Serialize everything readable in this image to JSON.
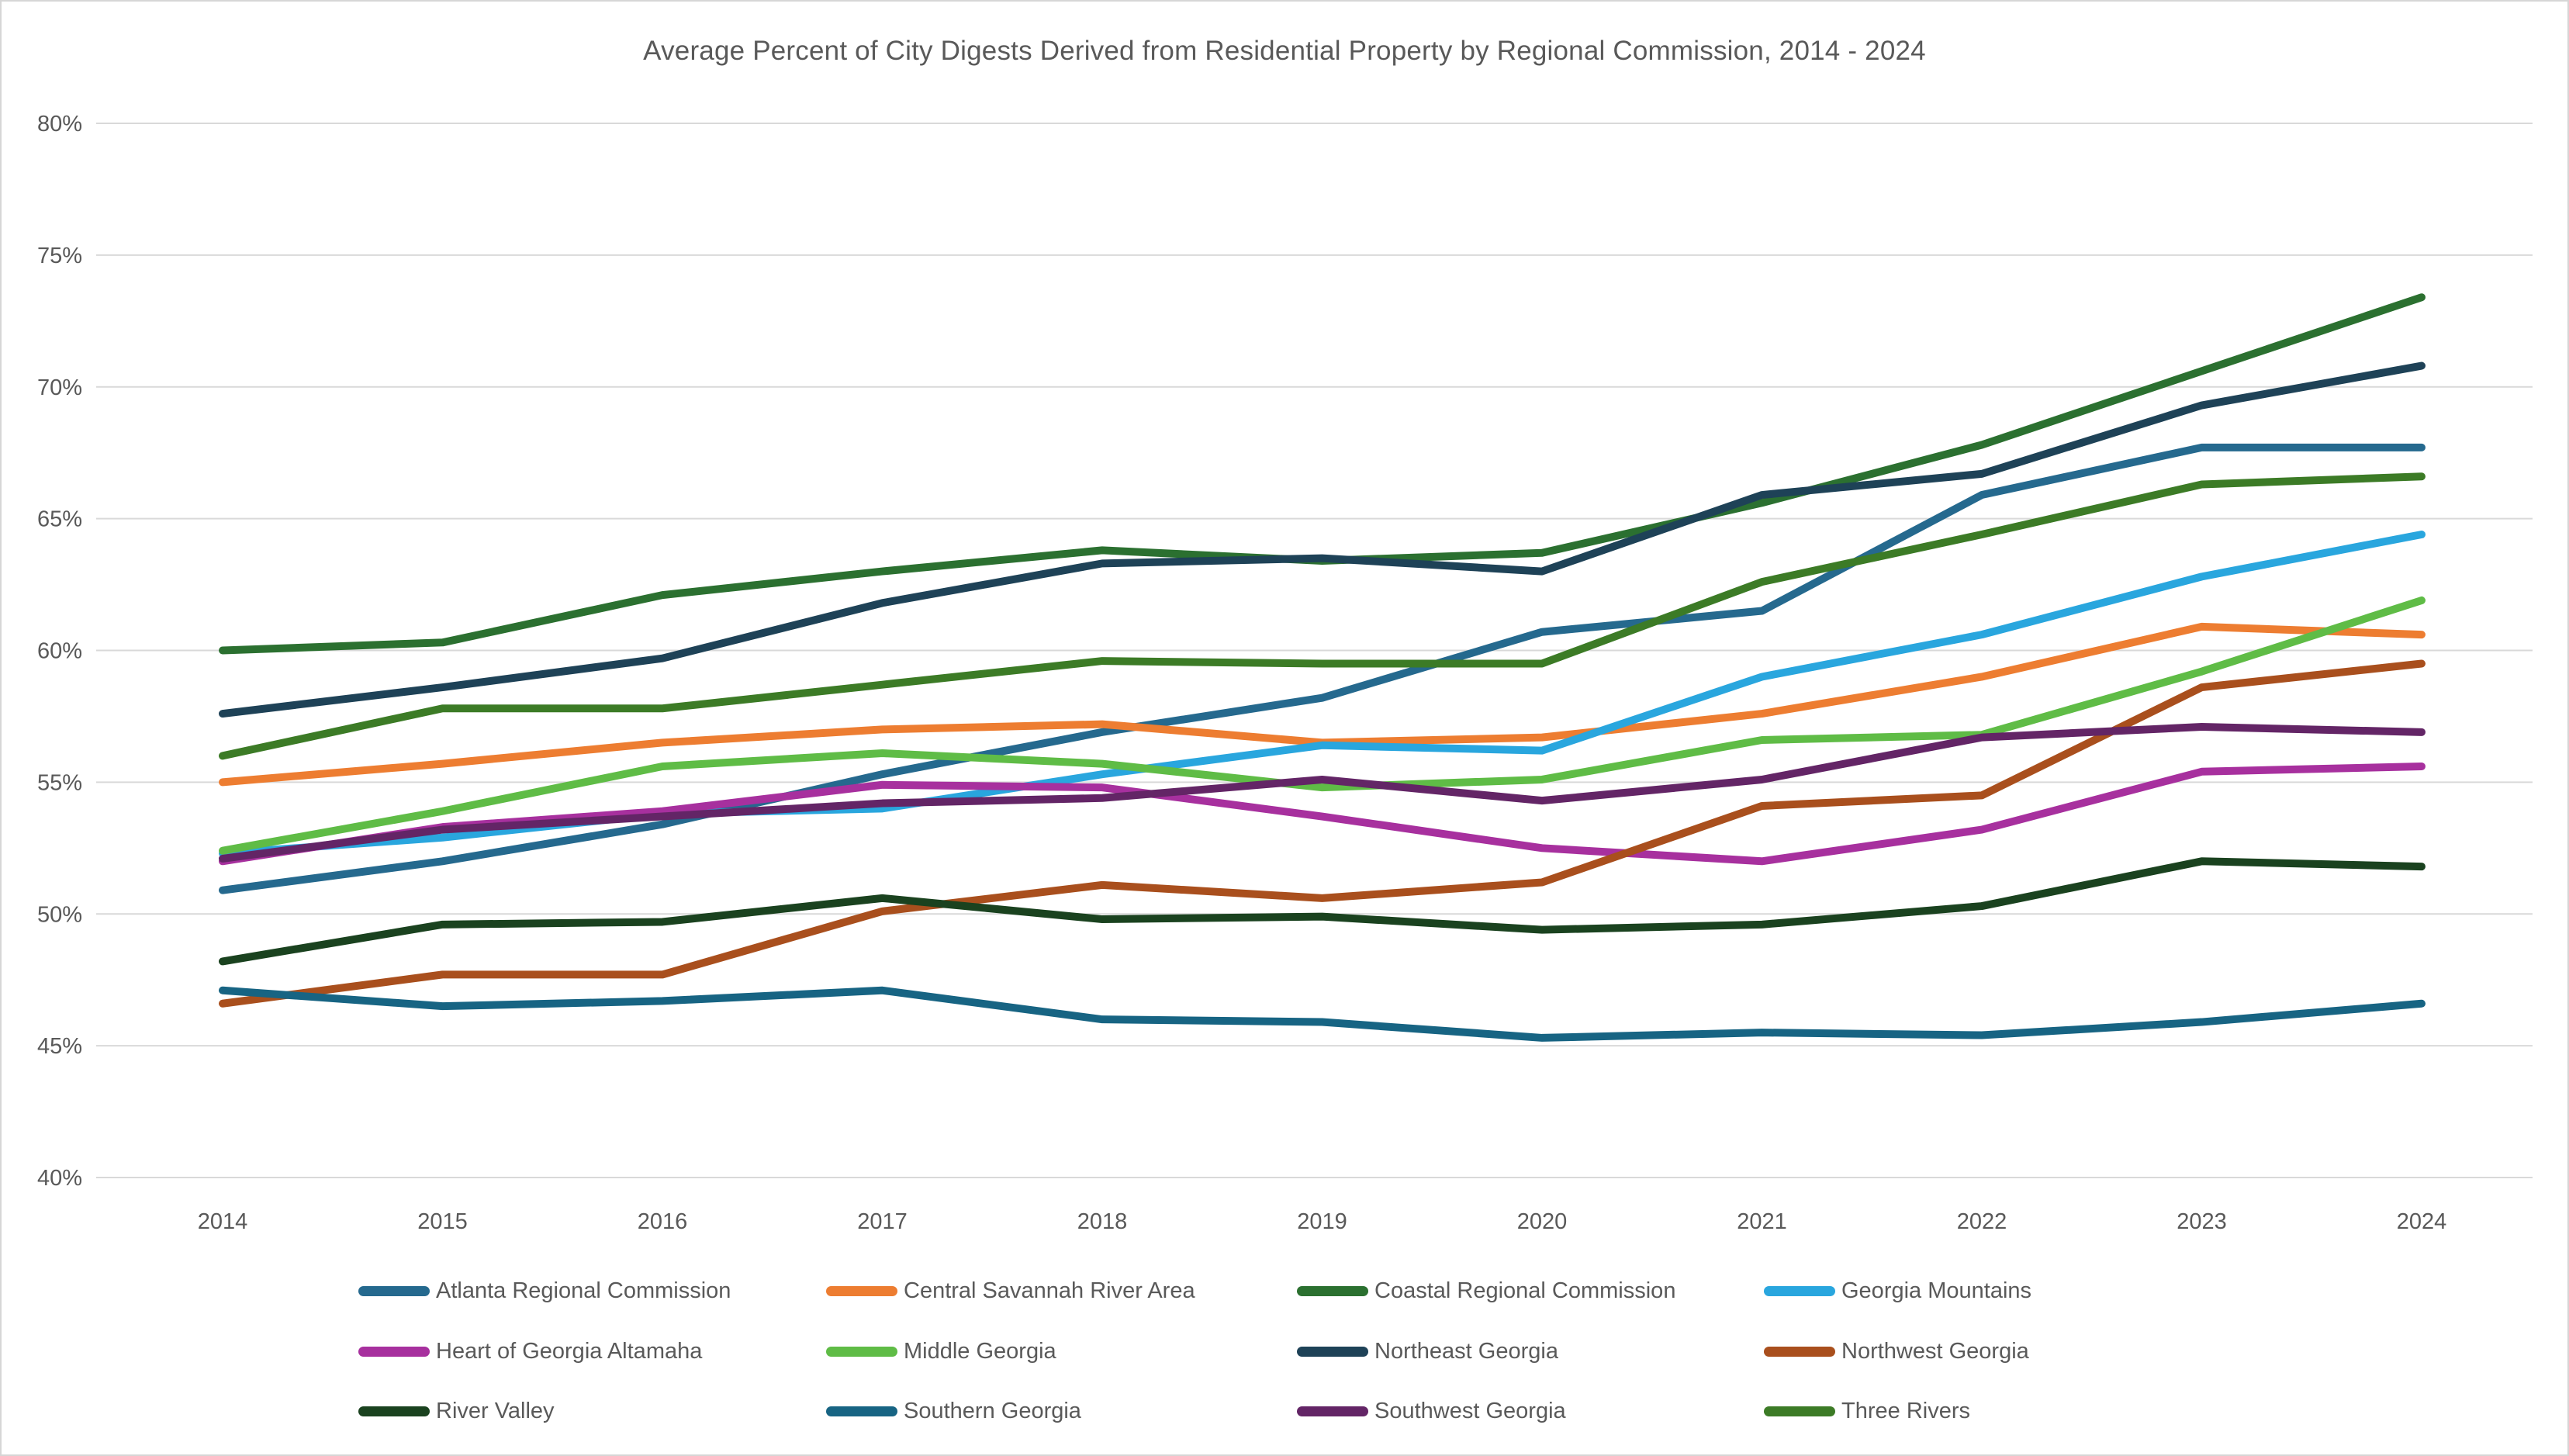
{
  "chart": {
    "title_text": "Average Percent of City Digests Derived from Residential Property by Regional Commission, 2014 - 2024",
    "colors": {
      "text": "#595959",
      "gridline": "#D9D9D9",
      "background": "#FFFFFF",
      "border": "#D6D6D6"
    }
  },
  "chart_data": {
    "type": "line",
    "title": "Average Percent of City Digests Derived from Residential Property by Regional Commission, 2014 - 2024",
    "x": [
      2014,
      2015,
      2016,
      2017,
      2018,
      2019,
      2020,
      2021,
      2022,
      2023,
      2024
    ],
    "xlabel": "",
    "ylabel": "",
    "y_axis": {
      "min": 40,
      "max": 80,
      "step": 5,
      "format": "percent"
    },
    "grid": true,
    "legend_position": "bottom",
    "legend_columns": 4,
    "series": [
      {
        "name": "Atlanta Regional Commission",
        "color": "#25698E",
        "values": [
          50.9,
          52.0,
          53.4,
          55.3,
          56.9,
          58.2,
          60.7,
          61.5,
          65.9,
          67.7,
          67.7
        ]
      },
      {
        "name": "Central Savannah River Area",
        "color": "#ED7D31",
        "values": [
          55.0,
          55.7,
          56.5,
          57.0,
          57.2,
          56.5,
          56.7,
          57.6,
          59.0,
          60.9,
          60.6
        ]
      },
      {
        "name": "Coastal Regional Commission",
        "color": "#2B7030",
        "values": [
          60.0,
          60.3,
          62.1,
          63.0,
          63.8,
          63.4,
          63.7,
          65.6,
          67.8,
          70.6,
          73.4
        ]
      },
      {
        "name": "Georgia Mountains",
        "color": "#29A6DE",
        "values": [
          52.3,
          52.9,
          53.8,
          54.0,
          55.3,
          56.4,
          56.2,
          59.0,
          60.6,
          62.8,
          64.4
        ]
      },
      {
        "name": "Heart of Georgia Altamaha",
        "color": "#A7309E",
        "values": [
          52.0,
          53.3,
          53.9,
          54.9,
          54.8,
          53.7,
          52.5,
          52.0,
          53.2,
          55.4,
          55.6
        ]
      },
      {
        "name": "Middle Georgia",
        "color": "#5FBC46",
        "values": [
          52.4,
          53.9,
          55.6,
          56.1,
          55.7,
          54.8,
          55.1,
          56.6,
          56.8,
          59.2,
          61.9
        ]
      },
      {
        "name": "Northeast Georgia",
        "color": "#1E4257",
        "values": [
          57.6,
          58.6,
          59.7,
          61.8,
          63.3,
          63.5,
          63.0,
          65.9,
          66.7,
          69.3,
          70.8
        ]
      },
      {
        "name": "Northwest Georgia",
        "color": "#A94F1D",
        "values": [
          46.6,
          47.7,
          47.7,
          50.1,
          51.1,
          50.6,
          51.2,
          54.1,
          54.5,
          58.6,
          59.5
        ]
      },
      {
        "name": "River Valley",
        "color": "#1A421F",
        "values": [
          48.2,
          49.6,
          49.7,
          50.6,
          49.8,
          49.9,
          49.4,
          49.6,
          50.3,
          52.0,
          51.8
        ]
      },
      {
        "name": "Southern Georgia",
        "color": "#176483",
        "values": [
          47.1,
          46.5,
          46.7,
          47.1,
          46.0,
          45.9,
          45.3,
          45.5,
          45.4,
          45.9,
          46.6
        ]
      },
      {
        "name": "Southwest Georgia",
        "color": "#632566",
        "values": [
          52.1,
          53.2,
          53.7,
          54.2,
          54.4,
          55.1,
          54.3,
          55.1,
          56.7,
          57.1,
          56.9
        ]
      },
      {
        "name": "Three Rivers",
        "color": "#3C7B26",
        "values": [
          56.0,
          57.8,
          57.8,
          58.7,
          59.6,
          59.5,
          59.5,
          62.6,
          64.4,
          66.3,
          66.6
        ]
      }
    ]
  }
}
